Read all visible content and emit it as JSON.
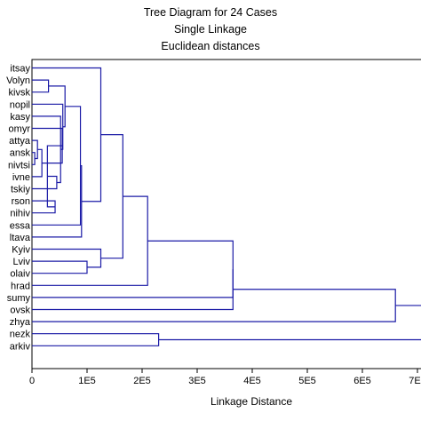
{
  "chart_data": {
    "type": "dendrogram",
    "title": "Tree Diagram for 24 Cases",
    "subtitle_1": "Single Linkage",
    "subtitle_2": "Euclidean distances",
    "xlabel": "Linkage Distance",
    "xlim": [
      0,
      700000
    ],
    "xticks": [
      {
        "value": 0,
        "label": "0"
      },
      {
        "value": 100000,
        "label": "1E5"
      },
      {
        "value": 200000,
        "label": "2E5"
      },
      {
        "value": 300000,
        "label": "3E5"
      },
      {
        "value": 400000,
        "label": "4E5"
      },
      {
        "value": 500000,
        "label": "5E5"
      },
      {
        "value": 600000,
        "label": "6E5"
      },
      {
        "value": 700000,
        "label": "7E5"
      }
    ],
    "line_color": "#1a1aa6",
    "leaves": [
      "itsay",
      "Volyn",
      "kivsk",
      "nopil",
      "kasy",
      "omyr",
      "attya",
      "ansk",
      "nivtsi",
      "ivne",
      "tskiy",
      "rson",
      "nihiv",
      "essa",
      "ltava",
      "Kyiv",
      "Lviv",
      "olaiv",
      "hrad",
      "sumy",
      "ovsk",
      "zhya",
      "nezk",
      "arkiv"
    ],
    "merges": [
      {
        "left": "L7",
        "right": "L8",
        "height": 5000
      },
      {
        "left": "M0",
        "right": "L6",
        "height": 10000
      },
      {
        "left": "M1",
        "right": "L9",
        "height": 18000
      },
      {
        "left": "L1",
        "right": "L2",
        "height": 30000
      },
      {
        "left": "L11",
        "right": "L12",
        "height": 42000
      },
      {
        "left": "M2",
        "right": "L5",
        "height": 55000
      },
      {
        "left": "M5",
        "right": "M4",
        "height": 28000
      },
      {
        "left": "L10",
        "right": "M6",
        "height": 45000
      },
      {
        "left": "M7",
        "right": "L4",
        "height": 52000
      },
      {
        "left": "M8",
        "right": "L3",
        "height": 56000
      },
      {
        "left": "M3",
        "right": "M9",
        "height": 60000
      },
      {
        "left": "M10",
        "right": "L13",
        "height": 88000
      },
      {
        "left": "M11",
        "right": "L14",
        "height": 90000
      },
      {
        "left": "L16",
        "right": "L17",
        "height": 100000
      },
      {
        "left": "L15",
        "right": "M13",
        "height": 125000
      },
      {
        "left": "L0",
        "right": "M12",
        "height": 125000
      },
      {
        "left": "M15",
        "right": "M14",
        "height": 165000
      },
      {
        "left": "M16",
        "right": "L18",
        "height": 210000
      },
      {
        "left": "M17",
        "right": "L19",
        "height": 365000
      },
      {
        "left": "M18",
        "right": "L20",
        "height": 365000
      },
      {
        "left": "M19",
        "right": "L21",
        "height": 660000
      },
      {
        "left": "L22",
        "right": "L23",
        "height": 230000
      },
      {
        "left": "M20",
        "right": "M21",
        "height": 710000
      }
    ]
  }
}
